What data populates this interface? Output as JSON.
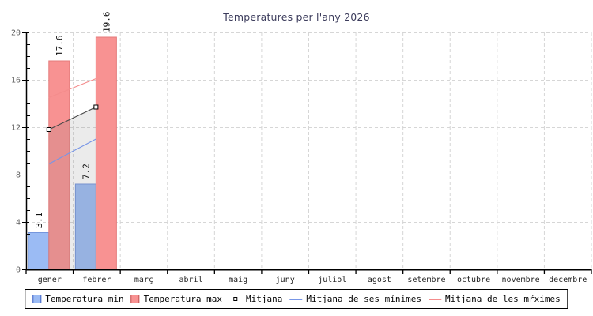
{
  "chart_data": {
    "type": "bar",
    "title": "Temperatures per l'any 2026",
    "title_color": "#3c3c5c",
    "categories": [
      "gener",
      "febrer",
      "març",
      "abril",
      "maig",
      "juny",
      "juliol",
      "agost",
      "setembre",
      "octubre",
      "novembre",
      "decembre"
    ],
    "bar_series": [
      {
        "name": "Temperatura min",
        "values": [
          3.1,
          7.2,
          null,
          null,
          null,
          null,
          null,
          null,
          null,
          null,
          null,
          null
        ],
        "color": "#9bbbf4",
        "border_color": "#7596dd"
      },
      {
        "name": "Temperatura max",
        "values": [
          17.6,
          19.6,
          null,
          null,
          null,
          null,
          null,
          null,
          null,
          null,
          null,
          null
        ],
        "color": "#f89292",
        "border_color": "#e57b7b"
      }
    ],
    "line_series": [
      {
        "name": "Mitjana",
        "values": [
          11.8,
          13.7,
          null,
          null,
          null,
          null,
          null,
          null,
          null,
          null,
          null,
          null
        ],
        "color": "#4a4a4a",
        "marker": "open-square"
      },
      {
        "name": "Mitjana de ses mínimes",
        "values": [
          8.9,
          11.0,
          null,
          null,
          null,
          null,
          null,
          null,
          null,
          null,
          null,
          null
        ],
        "color": "#7896e6",
        "marker": "none"
      },
      {
        "name": "Mitjana de les mŕximes",
        "values": [
          14.5,
          16.1,
          null,
          null,
          null,
          null,
          null,
          null,
          null,
          null,
          null,
          null
        ],
        "color": "#f48c8c",
        "marker": "none"
      }
    ],
    "area_fill_under_line": {
      "series": "Mitjana",
      "color": "rgba(130,130,130,0.16)"
    },
    "show_bar_value_labels": true,
    "bar_value_labels_shown": [
      "3.1",
      "7.2",
      "17.6",
      "19.6"
    ],
    "xlabel": "",
    "ylabel": "",
    "ylim": [
      0,
      20
    ],
    "y_major_ticks": [
      0,
      4,
      8,
      12,
      16,
      20
    ],
    "y_minor_step": 1,
    "grid": true,
    "grid_color": "#d6d6d6",
    "axis_color": "#000000",
    "y_label_color": "#606060",
    "x_label_color": "#222222",
    "legend_position": "bottom"
  }
}
